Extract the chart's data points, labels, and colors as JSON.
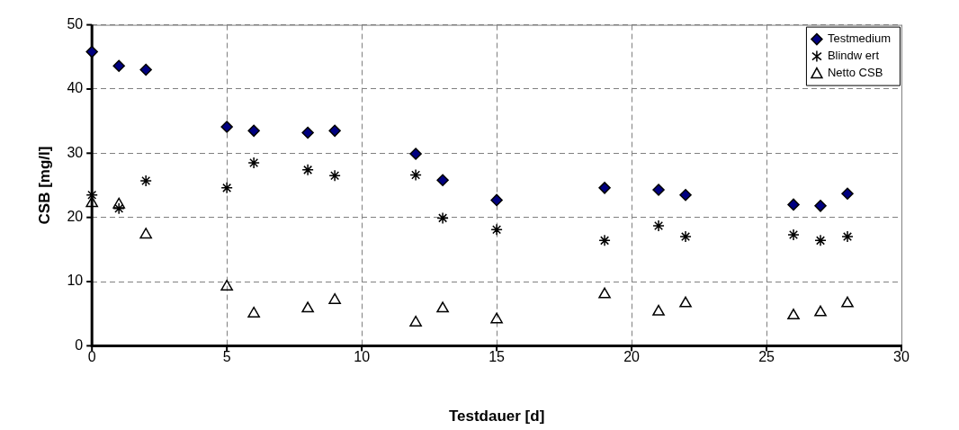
{
  "chart_data": {
    "type": "scatter",
    "xlabel": "Testdauer [d]",
    "ylabel": "CSB [mg/l]",
    "x": [
      0,
      1,
      2,
      5,
      6,
      8,
      9,
      12,
      13,
      15,
      19,
      21,
      22,
      26,
      27,
      28
    ],
    "series": [
      {
        "name": "Testmedium",
        "color": "#000080",
        "marker": "diamond",
        "values": [
          45.8,
          43.6,
          43.0,
          34.1,
          33.5,
          33.2,
          33.5,
          29.9,
          25.8,
          22.7,
          24.6,
          24.3,
          23.5,
          22.0,
          21.8,
          23.7
        ]
      },
      {
        "name": "Blindw ert",
        "color": "#000000",
        "marker": "cross",
        "values": [
          23.5,
          21.4,
          25.7,
          24.6,
          28.5,
          27.4,
          26.5,
          26.6,
          19.9,
          18.1,
          16.4,
          18.7,
          17.0,
          17.3,
          16.4,
          17.0
        ]
      },
      {
        "name": "Netto CSB",
        "color": "#000000",
        "marker": "triangle",
        "values": [
          22.2,
          22.0,
          17.3,
          9.2,
          5.0,
          5.8,
          7.1,
          3.6,
          5.8,
          4.1,
          8.0,
          5.3,
          6.6,
          4.7,
          5.2,
          6.6
        ]
      }
    ],
    "xlim": [
      0,
      30
    ],
    "xticks": [
      0,
      5,
      10,
      15,
      20,
      25,
      30
    ],
    "ylim": [
      0,
      50
    ],
    "yticks": [
      0,
      10,
      20,
      30,
      40,
      50
    ],
    "grid": true,
    "legend": "top right"
  }
}
